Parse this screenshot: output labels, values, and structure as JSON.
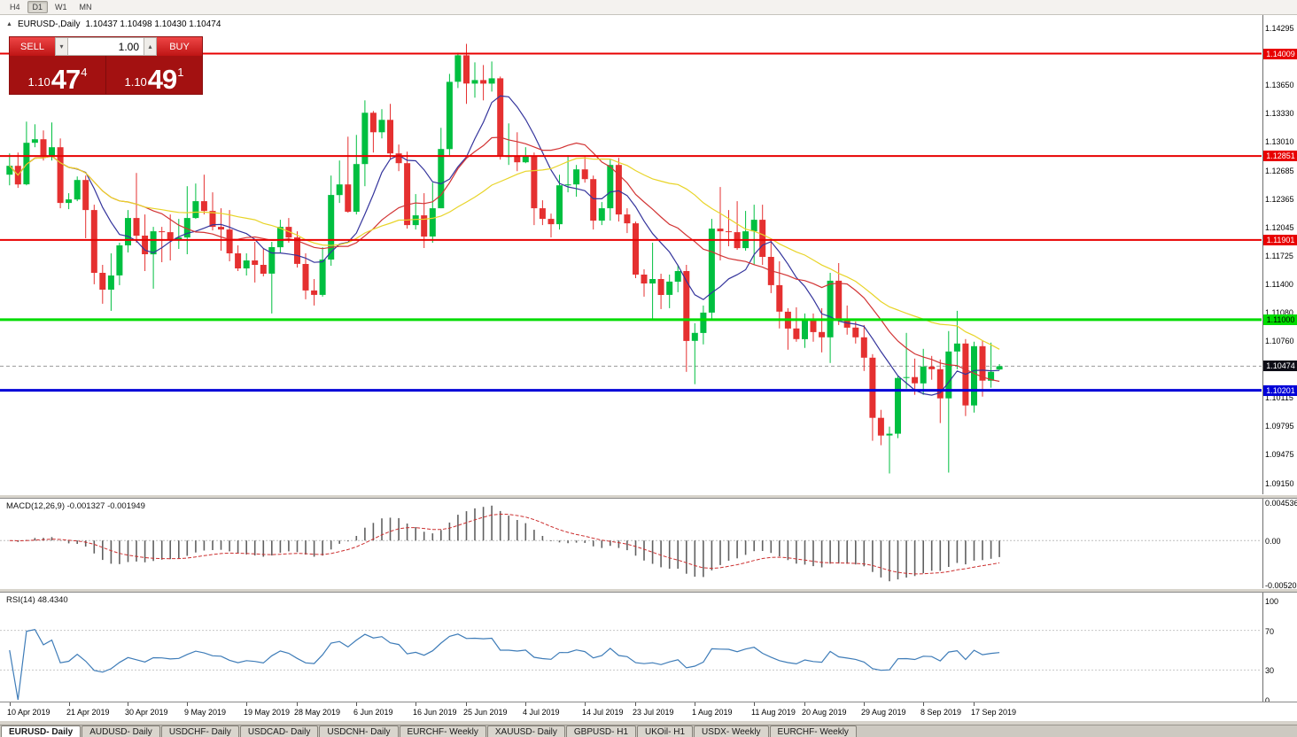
{
  "toolbar": {
    "timeframes": [
      {
        "label": "H4",
        "active": false
      },
      {
        "label": "D1",
        "active": true
      },
      {
        "label": "W1",
        "active": false
      },
      {
        "label": "MN",
        "active": false
      }
    ]
  },
  "icons": {
    "one_click_toggle": "▲",
    "volume_down": "▾",
    "volume_up": "▴"
  },
  "chart": {
    "header": {
      "symbol": "EURUSD-,Daily",
      "ohlc": "1.10437 1.10498 1.10430 1.10474"
    },
    "trade_panel": {
      "sell_label": "SELL",
      "buy_label": "BUY",
      "volume": "1.00",
      "bid": {
        "prefix": "1.10",
        "digits": "47",
        "pip": "4"
      },
      "ask": {
        "prefix": "1.10",
        "digits": "49",
        "pip": "1"
      }
    }
  },
  "chart_data": {
    "type": "candlestick",
    "symbol": "EURUSD-",
    "timeframe": "Daily",
    "candle_colors": {
      "up": "#00bf40",
      "down": "#e53030"
    },
    "price_axis": {
      "range": {
        "top": 1.14375,
        "bottom": 1.09045
      },
      "ticks": [
        "1.14295",
        "1.13650",
        "1.13330",
        "1.13010",
        "1.12685",
        "1.12365",
        "1.12045",
        "1.11725",
        "1.11400",
        "1.11080",
        "1.10760",
        "1.10115",
        "1.09795",
        "1.09475",
        "1.09150"
      ]
    },
    "hlines": [
      {
        "price": 1.14009,
        "label": "1.14009",
        "color": "#e80000",
        "fg": "#ffffff",
        "width": 2
      },
      {
        "price": 1.12851,
        "label": "1.12851",
        "color": "#e80000",
        "fg": "#ffffff",
        "width": 2
      },
      {
        "price": 1.11901,
        "label": "1.11901",
        "color": "#e80000",
        "fg": "#ffffff",
        "width": 2
      },
      {
        "price": 1.11,
        "label": "1.11000",
        "color": "#00dc00",
        "fg": "#000000",
        "width": 3
      },
      {
        "price": 1.10201,
        "label": "1.10201",
        "color": "#0000d8",
        "fg": "#ffffff",
        "width": 3
      }
    ],
    "current_price": {
      "value": 1.10474,
      "label": "1.10474",
      "bg": "#0d0d16",
      "fg": "#ffffff"
    },
    "x_labels": [
      {
        "label": "10 Apr 2019",
        "index": 0
      },
      {
        "label": "21 Apr 2019",
        "index": 7
      },
      {
        "label": "30 Apr 2019",
        "index": 14
      },
      {
        "label": "9 May 2019",
        "index": 21
      },
      {
        "label": "19 May 2019",
        "index": 28
      },
      {
        "label": "28 May 2019",
        "index": 34
      },
      {
        "label": "6 Jun 2019",
        "index": 41
      },
      {
        "label": "16 Jun 2019",
        "index": 48
      },
      {
        "label": "25 Jun 2019",
        "index": 54
      },
      {
        "label": "4 Jul 2019",
        "index": 61
      },
      {
        "label": "14 Jul 2019",
        "index": 68
      },
      {
        "label": "23 Jul 2019",
        "index": 74
      },
      {
        "label": "1 Aug 2019",
        "index": 81
      },
      {
        "label": "11 Aug 2019",
        "index": 88
      },
      {
        "label": "20 Aug 2019",
        "index": 94
      },
      {
        "label": "29 Aug 2019",
        "index": 101
      },
      {
        "label": "8 Sep 2019",
        "index": 108
      },
      {
        "label": "17 Sep 2019",
        "index": 114
      }
    ],
    "moving_averages": [
      {
        "name": "ma-fast",
        "period": 8,
        "color": "#34349c"
      },
      {
        "name": "ma-mid",
        "period": 17,
        "color": "#d23434"
      },
      {
        "name": "ma-slow",
        "period": 30,
        "color": "#e8d428"
      }
    ],
    "macd": {
      "params_label": "MACD(12,26,9)",
      "values_label": "-0.001327 -0.001949",
      "fast": 12,
      "slow": 26,
      "signal": 9,
      "axis_labels": [
        "0.004536",
        "0.00",
        "-0.005205"
      ],
      "bar_color": "#606060",
      "signal_color": "#cc3030"
    },
    "rsi": {
      "params_label": "RSI(14)",
      "value_label": "48.4340",
      "period": 14,
      "axis_labels": [
        "100",
        "70",
        "30",
        "0"
      ],
      "levels": [
        70,
        30
      ],
      "line_color": "#3e7cb8"
    },
    "candles": [
      [
        1.1264,
        1.1288,
        1.1252,
        1.1274
      ],
      [
        1.1274,
        1.1289,
        1.1249,
        1.1253
      ],
      [
        1.1253,
        1.1324,
        1.1252,
        1.13
      ],
      [
        1.13,
        1.1321,
        1.1295,
        1.1304
      ],
      [
        1.1304,
        1.1314,
        1.128,
        1.1284
      ],
      [
        1.1284,
        1.1323,
        1.128,
        1.1295
      ],
      [
        1.1295,
        1.1305,
        1.1226,
        1.1232
      ],
      [
        1.1232,
        1.1243,
        1.1225,
        1.1236
      ],
      [
        1.1236,
        1.1262,
        1.1234,
        1.1258
      ],
      [
        1.1258,
        1.1263,
        1.1192,
        1.1224
      ],
      [
        1.1224,
        1.123,
        1.114,
        1.1153
      ],
      [
        1.1153,
        1.1162,
        1.1118,
        1.1134
      ],
      [
        1.1134,
        1.1175,
        1.111,
        1.115
      ],
      [
        1.115,
        1.1187,
        1.1139,
        1.1184
      ],
      [
        1.1184,
        1.1224,
        1.1176,
        1.1215
      ],
      [
        1.1215,
        1.1266,
        1.1187,
        1.1195
      ],
      [
        1.1195,
        1.1219,
        1.1155,
        1.1174
      ],
      [
        1.1174,
        1.1205,
        1.1135,
        1.12
      ],
      [
        1.12,
        1.1205,
        1.1165,
        1.1199
      ],
      [
        1.1199,
        1.1219,
        1.1167,
        1.119
      ],
      [
        1.119,
        1.1214,
        1.118,
        1.1193
      ],
      [
        1.1193,
        1.1251,
        1.1174,
        1.1215
      ],
      [
        1.1215,
        1.1254,
        1.1214,
        1.1234
      ],
      [
        1.1234,
        1.1264,
        1.1219,
        1.1223
      ],
      [
        1.1223,
        1.1244,
        1.1201,
        1.1205
      ],
      [
        1.1205,
        1.1226,
        1.1178,
        1.1202
      ],
      [
        1.1202,
        1.1224,
        1.1166,
        1.1175
      ],
      [
        1.1175,
        1.1184,
        1.1155,
        1.1158
      ],
      [
        1.1158,
        1.1175,
        1.115,
        1.1167
      ],
      [
        1.1167,
        1.1188,
        1.1142,
        1.1162
      ],
      [
        1.1162,
        1.118,
        1.1149,
        1.1152
      ],
      [
        1.1152,
        1.1188,
        1.1107,
        1.1182
      ],
      [
        1.1182,
        1.1213,
        1.1175,
        1.1205
      ],
      [
        1.1205,
        1.1215,
        1.1187,
        1.1193
      ],
      [
        1.1193,
        1.12,
        1.1159,
        1.1163
      ],
      [
        1.1163,
        1.1175,
        1.1123,
        1.1133
      ],
      [
        1.1133,
        1.1146,
        1.1116,
        1.1128
      ],
      [
        1.1128,
        1.1182,
        1.1126,
        1.1168
      ],
      [
        1.1168,
        1.1263,
        1.1161,
        1.1241
      ],
      [
        1.1241,
        1.128,
        1.1232,
        1.1253
      ],
      [
        1.1253,
        1.1307,
        1.1221,
        1.1222
      ],
      [
        1.1222,
        1.1309,
        1.1219,
        1.1276
      ],
      [
        1.1276,
        1.1348,
        1.1251,
        1.1334
      ],
      [
        1.1334,
        1.1336,
        1.1289,
        1.1312
      ],
      [
        1.1312,
        1.1338,
        1.1305,
        1.1326
      ],
      [
        1.1326,
        1.1344,
        1.1282,
        1.1288
      ],
      [
        1.1288,
        1.1298,
        1.1268,
        1.1277
      ],
      [
        1.1277,
        1.129,
        1.1203,
        1.1207
      ],
      [
        1.1207,
        1.1242,
        1.1202,
        1.1218
      ],
      [
        1.1218,
        1.1243,
        1.1181,
        1.1194
      ],
      [
        1.1194,
        1.1255,
        1.1187,
        1.1226
      ],
      [
        1.1226,
        1.1317,
        1.1226,
        1.1293
      ],
      [
        1.1293,
        1.1378,
        1.1286,
        1.1369
      ],
      [
        1.1369,
        1.1402,
        1.1362,
        1.1399
      ],
      [
        1.1399,
        1.1412,
        1.1344,
        1.1367
      ],
      [
        1.1367,
        1.1391,
        1.1351,
        1.1371
      ],
      [
        1.1371,
        1.1388,
        1.1348,
        1.1367
      ],
      [
        1.1367,
        1.1392,
        1.1358,
        1.1373
      ],
      [
        1.1373,
        1.1375,
        1.1281,
        1.1285
      ],
      [
        1.1285,
        1.1322,
        1.1275,
        1.1285
      ],
      [
        1.1285,
        1.1312,
        1.1268,
        1.1278
      ],
      [
        1.1278,
        1.1295,
        1.1277,
        1.1285
      ],
      [
        1.1285,
        1.1289,
        1.1207,
        1.1226
      ],
      [
        1.1226,
        1.1235,
        1.1207,
        1.1214
      ],
      [
        1.1214,
        1.122,
        1.1193,
        1.1208
      ],
      [
        1.1208,
        1.1264,
        1.1202,
        1.1252
      ],
      [
        1.1252,
        1.1286,
        1.1244,
        1.1253
      ],
      [
        1.1253,
        1.1275,
        1.1239,
        1.127
      ],
      [
        1.127,
        1.1284,
        1.1255,
        1.1259
      ],
      [
        1.1259,
        1.1263,
        1.1202,
        1.1212
      ],
      [
        1.1212,
        1.1233,
        1.1207,
        1.1226
      ],
      [
        1.1226,
        1.1281,
        1.1212,
        1.1275
      ],
      [
        1.1275,
        1.1283,
        1.1211,
        1.1219
      ],
      [
        1.1219,
        1.1226,
        1.1198,
        1.1209
      ],
      [
        1.1209,
        1.1211,
        1.1147,
        1.1151
      ],
      [
        1.1151,
        1.1157,
        1.1126,
        1.1141
      ],
      [
        1.1141,
        1.1187,
        1.1101,
        1.1146
      ],
      [
        1.1146,
        1.1152,
        1.1112,
        1.1128
      ],
      [
        1.1128,
        1.1151,
        1.1113,
        1.1143
      ],
      [
        1.1143,
        1.1162,
        1.1131,
        1.1155
      ],
      [
        1.1155,
        1.1162,
        1.1041,
        1.1076
      ],
      [
        1.1076,
        1.1096,
        1.1027,
        1.1085
      ],
      [
        1.1085,
        1.1116,
        1.1072,
        1.1108
      ],
      [
        1.1108,
        1.1214,
        1.1101,
        1.1203
      ],
      [
        1.1203,
        1.125,
        1.1167,
        1.12
      ],
      [
        1.12,
        1.1224,
        1.1183,
        1.1199
      ],
      [
        1.1199,
        1.1234,
        1.1179,
        1.1181
      ],
      [
        1.1181,
        1.1223,
        1.1178,
        1.12
      ],
      [
        1.12,
        1.123,
        1.1162,
        1.1213
      ],
      [
        1.1213,
        1.123,
        1.1162,
        1.1171
      ],
      [
        1.1171,
        1.1192,
        1.113,
        1.1139
      ],
      [
        1.1139,
        1.1166,
        1.109,
        1.1109
      ],
      [
        1.1109,
        1.1113,
        1.1066,
        1.109
      ],
      [
        1.109,
        1.1114,
        1.1075,
        1.1078
      ],
      [
        1.1078,
        1.1107,
        1.1068,
        1.11
      ],
      [
        1.11,
        1.1107,
        1.1075,
        1.1086
      ],
      [
        1.1086,
        1.1113,
        1.1063,
        1.108
      ],
      [
        1.108,
        1.1153,
        1.1051,
        1.1144
      ],
      [
        1.1144,
        1.1164,
        1.1094,
        1.1101
      ],
      [
        1.1101,
        1.1116,
        1.1083,
        1.1091
      ],
      [
        1.1091,
        1.1098,
        1.1073,
        1.108
      ],
      [
        1.108,
        1.1094,
        1.1042,
        1.1057
      ],
      [
        1.1057,
        1.1061,
        1.0963,
        1.0989
      ],
      [
        1.0989,
        1.0998,
        1.0958,
        1.0969
      ],
      [
        1.0969,
        1.0979,
        1.0926,
        1.0971
      ],
      [
        1.0971,
        1.1037,
        1.0966,
        1.1034
      ],
      [
        1.1034,
        1.1085,
        1.1022,
        1.1035
      ],
      [
        1.1035,
        1.1056,
        1.1015,
        1.1028
      ],
      [
        1.1028,
        1.1067,
        1.1015,
        1.1047
      ],
      [
        1.1047,
        1.1059,
        1.1032,
        1.1044
      ],
      [
        1.1044,
        1.1055,
        1.0983,
        1.1011
      ],
      [
        1.1011,
        1.1087,
        1.0927,
        1.1064
      ],
      [
        1.1064,
        1.111,
        1.1044,
        1.1073
      ],
      [
        1.1073,
        1.1078,
        1.0991,
        1.1003
      ],
      [
        1.1003,
        1.1075,
        1.0995,
        1.107
      ],
      [
        1.107,
        1.1076,
        1.1013,
        1.1031
      ],
      [
        1.1031,
        1.1074,
        1.1023,
        1.1041
      ],
      [
        1.10437,
        1.10498,
        1.1043,
        1.10474
      ]
    ]
  },
  "tabs": [
    {
      "label": "EURUSD- Daily",
      "active": true
    },
    {
      "label": "AUDUSD- Daily",
      "active": false
    },
    {
      "label": "USDCHF- Daily",
      "active": false
    },
    {
      "label": "USDCAD- Daily",
      "active": false
    },
    {
      "label": "USDCNH- Daily",
      "active": false
    },
    {
      "label": "EURCHF- Weekly",
      "active": false
    },
    {
      "label": "XAUUSD- Daily",
      "active": false
    },
    {
      "label": "GBPUSD- H1",
      "active": false
    },
    {
      "label": "UKOil- H1",
      "active": false
    },
    {
      "label": "USDX- Weekly",
      "active": false
    },
    {
      "label": "EURCHF- Weekly",
      "active": false
    }
  ]
}
